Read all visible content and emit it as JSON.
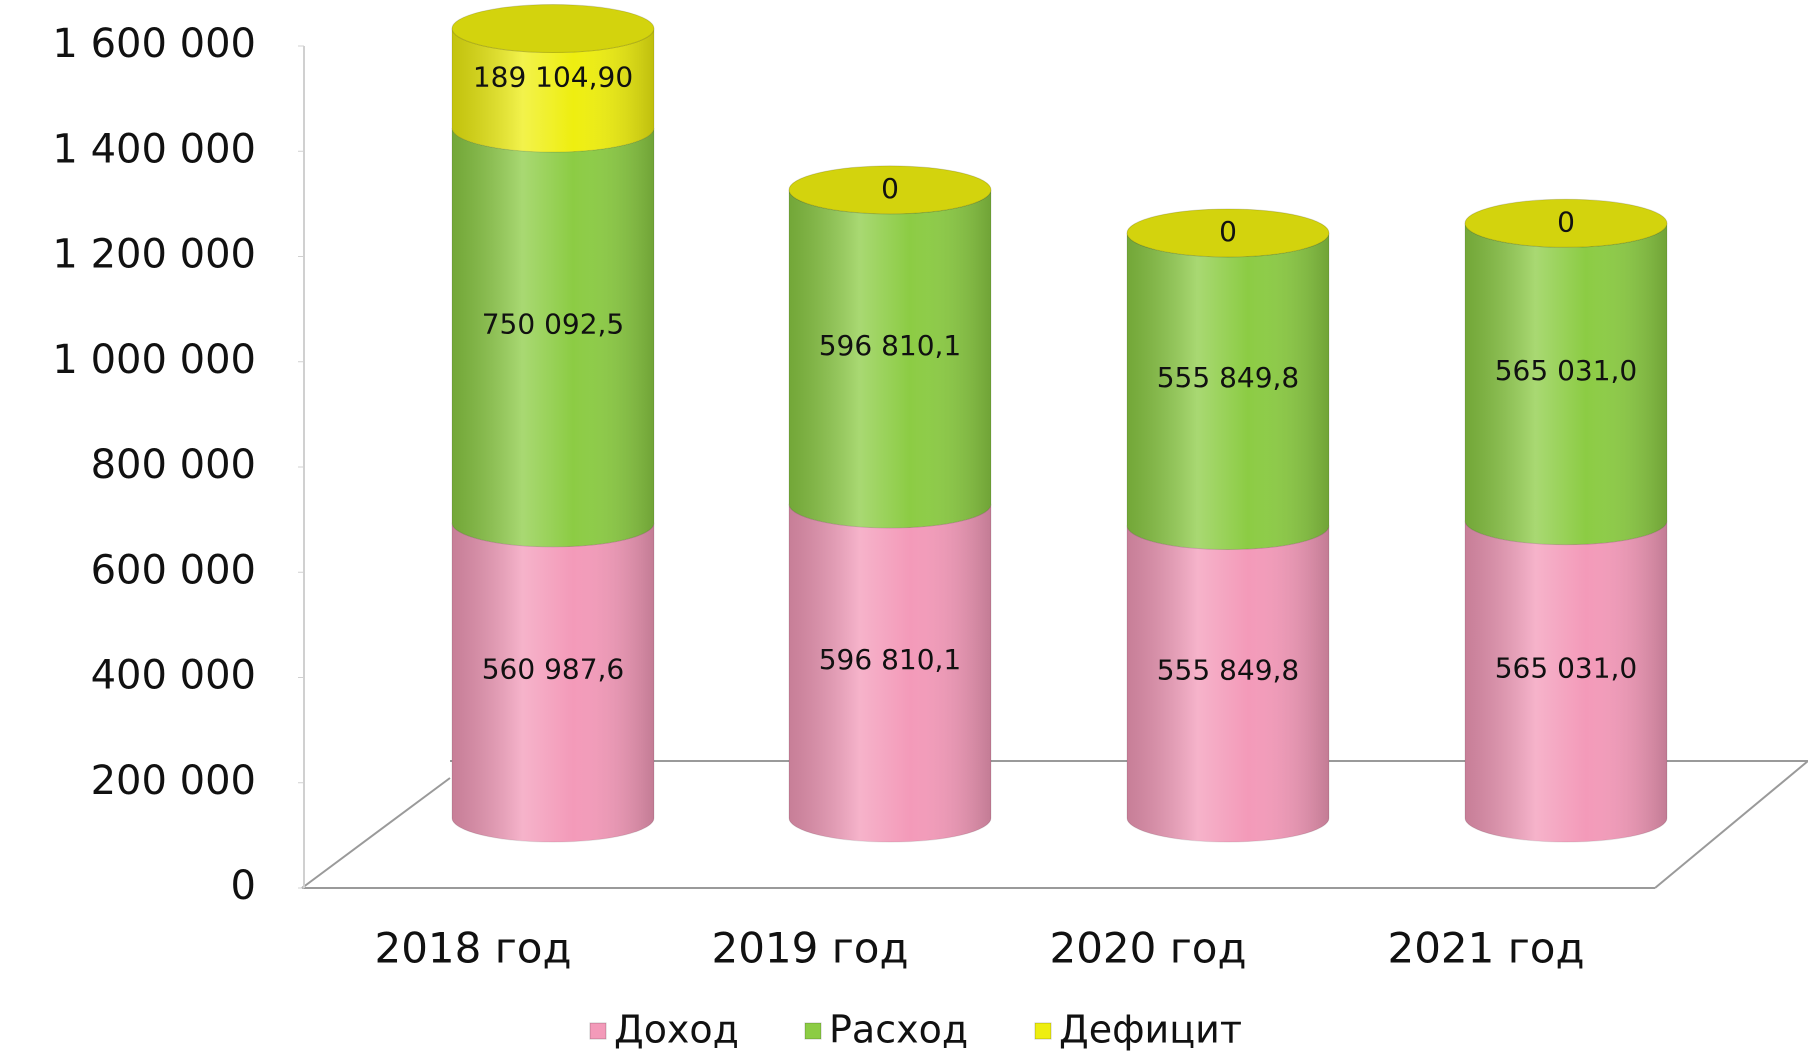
{
  "chart_data": {
    "type": "stacked-cylinder",
    "categories": [
      "2018 год",
      "2019 год",
      "2020 год",
      "2021 год"
    ],
    "series": [
      {
        "name": "Доход",
        "color": "#f39ab9",
        "values": [
          560987.6,
          596810.1,
          555849.8,
          565031.0
        ],
        "value_labels": [
          "560 987,6",
          "596 810,1",
          "555 849,8",
          "565 031,0"
        ]
      },
      {
        "name": "Расход",
        "color": "#8ccc44",
        "values": [
          750092.5,
          596810.1,
          555849.8,
          565031.0
        ],
        "value_labels": [
          "750 092,5",
          "596 810,1",
          "555 849,8",
          "565 031,0"
        ]
      },
      {
        "name": "Дефицит",
        "color": "#eeee10",
        "values": [
          189104.9,
          0,
          0,
          0
        ],
        "value_labels": [
          "189 104,90",
          "0",
          "0",
          "0"
        ]
      }
    ],
    "ylim": [
      0,
      1600000
    ],
    "yticks": [
      0,
      {
        "value": 200000,
        "label": "200 000"
      },
      {
        "value": 400000,
        "label": "400 000"
      },
      {
        "value": 600000,
        "label": "600 000"
      },
      {
        "value": 800000,
        "label": "800 000"
      },
      {
        "value": 1000000,
        "label": "1 000 000"
      },
      {
        "value": 1200000,
        "label": "1 200 000"
      },
      {
        "value": 1400000,
        "label": "1 400 000"
      },
      {
        "value": 1600000,
        "label": "1 600 000"
      }
    ],
    "legend": "bottom"
  }
}
